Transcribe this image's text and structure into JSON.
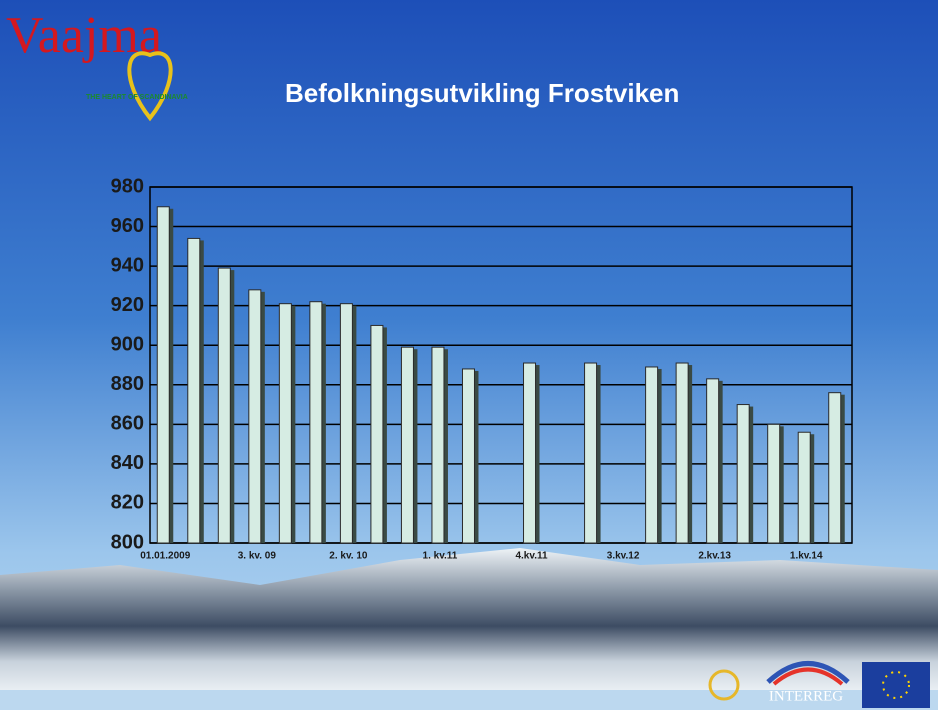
{
  "logo": {
    "name": "Vaajma",
    "tagline": "THE HEART OF SCANDINAVIA"
  },
  "footer": {
    "program": "INTERREG"
  },
  "chart_data": {
    "type": "bar",
    "title": "Befolkningsutvikling Frostviken",
    "categories": [
      "01.01.2009",
      null,
      null,
      "3. kv. 09",
      null,
      null,
      "2. kv. 10",
      null,
      null,
      "1. kv.11",
      null,
      null,
      "4.kv.11",
      null,
      null,
      "3.kv.12",
      null,
      null,
      "2.kv.13",
      null,
      null,
      "1.kv.14",
      null
    ],
    "values": [
      970,
      954,
      939,
      928,
      921,
      922,
      921,
      910,
      899,
      899,
      888,
      null,
      891,
      null,
      891,
      null,
      889,
      891,
      883,
      870,
      860,
      856,
      876
    ],
    "color": "#d6ece3",
    "ylim": [
      800,
      980
    ],
    "yticks": [
      800,
      820,
      840,
      860,
      880,
      900,
      920,
      940,
      960,
      980
    ],
    "grid": true
  }
}
